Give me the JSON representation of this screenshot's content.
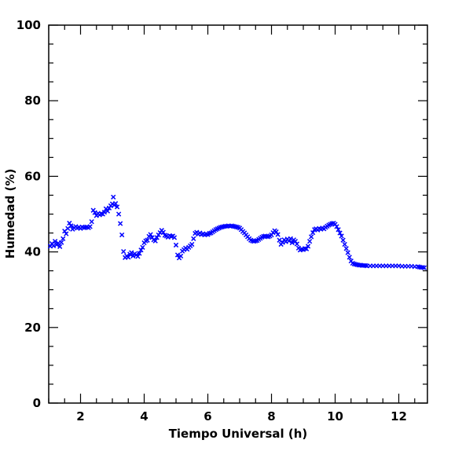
{
  "chart_data": {
    "type": "scatter",
    "xlabel": "Tiempo Universal (h)",
    "ylabel": "Humedad (%)",
    "xlim": [
      1.0,
      12.9
    ],
    "ylim": [
      0,
      100
    ],
    "x_ticks": [
      2,
      4,
      6,
      8,
      10,
      12
    ],
    "x_tick_labels": [
      "2",
      "4",
      "6",
      "8",
      "10",
      "12"
    ],
    "y_ticks": [
      0,
      20,
      40,
      60,
      80,
      100
    ],
    "y_tick_labels": [
      "0",
      "20",
      "40",
      "60",
      "80",
      "100"
    ],
    "grid": false,
    "marker": "x",
    "color": "#0000ff",
    "series": [
      {
        "points": [
          [
            1.05,
            41.5
          ],
          [
            1.1,
            42.2
          ],
          [
            1.15,
            41.6
          ],
          [
            1.2,
            42.8
          ],
          [
            1.25,
            41.9
          ],
          [
            1.3,
            42.3
          ],
          [
            1.35,
            41.4
          ],
          [
            1.4,
            42.5
          ],
          [
            1.45,
            43.5
          ],
          [
            1.5,
            45.5
          ],
          [
            1.55,
            44.8
          ],
          [
            1.6,
            46.2
          ],
          [
            1.65,
            47.6
          ],
          [
            1.7,
            46.9
          ],
          [
            1.75,
            46.0
          ],
          [
            1.8,
            46.4
          ],
          [
            1.85,
            46.7
          ],
          [
            1.9,
            46.3
          ],
          [
            1.95,
            46.5
          ],
          [
            2.0,
            46.2
          ],
          [
            2.05,
            46.6
          ],
          [
            2.1,
            46.4
          ],
          [
            2.15,
            46.5
          ],
          [
            2.2,
            46.6
          ],
          [
            2.25,
            46.4
          ],
          [
            2.3,
            46.7
          ],
          [
            2.35,
            48.0
          ],
          [
            2.4,
            51.0
          ],
          [
            2.45,
            50.4
          ],
          [
            2.5,
            49.6
          ],
          [
            2.55,
            50.2
          ],
          [
            2.6,
            49.8
          ],
          [
            2.65,
            50.1
          ],
          [
            2.7,
            50.0
          ],
          [
            2.75,
            50.5
          ],
          [
            2.8,
            51.4
          ],
          [
            2.85,
            50.8
          ],
          [
            2.9,
            51.6
          ],
          [
            2.95,
            52.2
          ],
          [
            3.0,
            52.7
          ],
          [
            3.03,
            54.5
          ],
          [
            3.06,
            52.4
          ],
          [
            3.1,
            52.8
          ],
          [
            3.15,
            51.9
          ],
          [
            3.2,
            50.0
          ],
          [
            3.25,
            47.5
          ],
          [
            3.3,
            44.5
          ],
          [
            3.35,
            40.1
          ],
          [
            3.4,
            38.5
          ],
          [
            3.45,
            38.9
          ],
          [
            3.5,
            38.6
          ],
          [
            3.55,
            39.4
          ],
          [
            3.6,
            39.8
          ],
          [
            3.65,
            38.9
          ],
          [
            3.7,
            39.5
          ],
          [
            3.75,
            39.2
          ],
          [
            3.8,
            38.8
          ],
          [
            3.85,
            39.6
          ],
          [
            3.9,
            40.5
          ],
          [
            3.95,
            41.2
          ],
          [
            4.0,
            42.4
          ],
          [
            4.05,
            42.9
          ],
          [
            4.1,
            43.1
          ],
          [
            4.15,
            44.1
          ],
          [
            4.2,
            44.6
          ],
          [
            4.25,
            43.8
          ],
          [
            4.3,
            43.2
          ],
          [
            4.35,
            42.9
          ],
          [
            4.4,
            43.8
          ],
          [
            4.45,
            44.5
          ],
          [
            4.5,
            45.1
          ],
          [
            4.55,
            45.7
          ],
          [
            4.6,
            45.2
          ],
          [
            4.65,
            44.4
          ],
          [
            4.7,
            44.2
          ],
          [
            4.75,
            43.9
          ],
          [
            4.8,
            44.3
          ],
          [
            4.85,
            44.1
          ],
          [
            4.9,
            44.2
          ],
          [
            4.95,
            43.8
          ],
          [
            5.0,
            41.8
          ],
          [
            5.05,
            39.2
          ],
          [
            5.1,
            38.4
          ],
          [
            5.15,
            38.9
          ],
          [
            5.2,
            40.2
          ],
          [
            5.25,
            40.6
          ],
          [
            5.3,
            41.0
          ],
          [
            5.35,
            40.7
          ],
          [
            5.4,
            41.2
          ],
          [
            5.45,
            41.6
          ],
          [
            5.5,
            42.0
          ],
          [
            5.55,
            43.5
          ],
          [
            5.6,
            44.9
          ],
          [
            5.65,
            45.2
          ],
          [
            5.7,
            44.7
          ],
          [
            5.75,
            45.0
          ],
          [
            5.8,
            44.6
          ],
          [
            5.85,
            44.8
          ],
          [
            5.9,
            44.5
          ],
          [
            5.95,
            44.7
          ],
          [
            6.0,
            44.6
          ],
          [
            6.05,
            44.9
          ],
          [
            6.1,
            45.0
          ],
          [
            6.15,
            45.3
          ],
          [
            6.2,
            45.6
          ],
          [
            6.25,
            45.9
          ],
          [
            6.3,
            46.1
          ],
          [
            6.35,
            46.3
          ],
          [
            6.4,
            46.5
          ],
          [
            6.45,
            46.6
          ],
          [
            6.5,
            46.7
          ],
          [
            6.55,
            46.8
          ],
          [
            6.6,
            46.8
          ],
          [
            6.65,
            46.9
          ],
          [
            6.7,
            46.8
          ],
          [
            6.75,
            46.9
          ],
          [
            6.8,
            46.8
          ],
          [
            6.85,
            46.7
          ],
          [
            6.9,
            46.6
          ],
          [
            6.95,
            46.5
          ],
          [
            7.0,
            46.3
          ],
          [
            7.05,
            45.9
          ],
          [
            7.1,
            45.4
          ],
          [
            7.15,
            45.0
          ],
          [
            7.2,
            44.5
          ],
          [
            7.25,
            44.0
          ],
          [
            7.3,
            43.5
          ],
          [
            7.35,
            43.1
          ],
          [
            7.4,
            42.9
          ],
          [
            7.45,
            42.8
          ],
          [
            7.5,
            42.9
          ],
          [
            7.55,
            43.0
          ],
          [
            7.6,
            43.3
          ],
          [
            7.65,
            43.6
          ],
          [
            7.7,
            43.9
          ],
          [
            7.75,
            44.1
          ],
          [
            7.8,
            44.2
          ],
          [
            7.85,
            44.1
          ],
          [
            7.9,
            44.0
          ],
          [
            7.95,
            44.2
          ],
          [
            8.0,
            44.5
          ],
          [
            8.05,
            45.1
          ],
          [
            8.1,
            45.6
          ],
          [
            8.15,
            45.3
          ],
          [
            8.2,
            44.6
          ],
          [
            8.25,
            43.1
          ],
          [
            8.3,
            42.0
          ],
          [
            8.35,
            42.5
          ],
          [
            8.4,
            43.2
          ],
          [
            8.45,
            42.7
          ],
          [
            8.5,
            43.4
          ],
          [
            8.55,
            42.9
          ],
          [
            8.6,
            43.5
          ],
          [
            8.65,
            42.4
          ],
          [
            8.7,
            43.2
          ],
          [
            8.75,
            42.8
          ],
          [
            8.8,
            42.1
          ],
          [
            8.85,
            41.0
          ],
          [
            8.9,
            40.5
          ],
          [
            8.95,
            40.7
          ],
          [
            9.0,
            40.6
          ],
          [
            9.05,
            40.9
          ],
          [
            9.1,
            40.8
          ],
          [
            9.15,
            41.5
          ],
          [
            9.2,
            42.8
          ],
          [
            9.25,
            44.0
          ],
          [
            9.3,
            45.1
          ],
          [
            9.35,
            45.9
          ],
          [
            9.4,
            46.1
          ],
          [
            9.45,
            45.8
          ],
          [
            9.5,
            46.2
          ],
          [
            9.55,
            46.0
          ],
          [
            9.6,
            46.3
          ],
          [
            9.65,
            46.1
          ],
          [
            9.7,
            46.5
          ],
          [
            9.75,
            46.8
          ],
          [
            9.8,
            47.1
          ],
          [
            9.85,
            47.3
          ],
          [
            9.9,
            47.5
          ],
          [
            9.95,
            47.6
          ],
          [
            10.0,
            47.3
          ],
          [
            10.05,
            46.7
          ],
          [
            10.1,
            45.9
          ],
          [
            10.15,
            45.0
          ],
          [
            10.2,
            44.2
          ],
          [
            10.25,
            43.1
          ],
          [
            10.3,
            42.0
          ],
          [
            10.35,
            40.9
          ],
          [
            10.4,
            39.8
          ],
          [
            10.45,
            38.6
          ],
          [
            10.5,
            37.6
          ],
          [
            10.55,
            37.0
          ],
          [
            10.6,
            36.8
          ],
          [
            10.65,
            36.7
          ],
          [
            10.7,
            36.6
          ],
          [
            10.75,
            36.5
          ],
          [
            10.8,
            36.5
          ],
          [
            10.85,
            36.4
          ],
          [
            10.9,
            36.4
          ],
          [
            10.95,
            36.4
          ],
          [
            11.0,
            36.3
          ],
          [
            11.1,
            36.3
          ],
          [
            11.2,
            36.3
          ],
          [
            11.3,
            36.3
          ],
          [
            11.4,
            36.3
          ],
          [
            11.5,
            36.3
          ],
          [
            11.6,
            36.3
          ],
          [
            11.7,
            36.3
          ],
          [
            11.8,
            36.3
          ],
          [
            11.9,
            36.3
          ],
          [
            12.0,
            36.3
          ],
          [
            12.1,
            36.2
          ],
          [
            12.2,
            36.2
          ],
          [
            12.3,
            36.2
          ],
          [
            12.4,
            36.2
          ],
          [
            12.5,
            36.1
          ],
          [
            12.6,
            36.1
          ],
          [
            12.65,
            36.0
          ],
          [
            12.7,
            35.9
          ],
          [
            12.75,
            35.9
          ],
          [
            12.8,
            35.8
          ]
        ]
      }
    ]
  }
}
